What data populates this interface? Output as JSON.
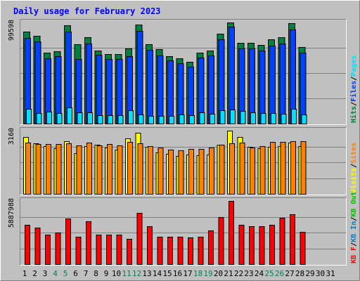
{
  "chart_data": {
    "type": "bar",
    "title": "Daily usage for February 2023",
    "colors": {
      "background": "#c0c0c0",
      "border_dark": "#808080",
      "border_light": "#ffffff",
      "title": "#0000ff",
      "hits": "#008040",
      "files": "#0040ff",
      "pages": "#00e0ff",
      "visits": "#ffff00",
      "sites": "#ff8000",
      "kb_in": "#0080c0",
      "kb_out": "#00c000",
      "kbf": "#ff0000",
      "weekend_label": "#00805c",
      "normal_label": "#000000"
    },
    "days": [
      "1",
      "2",
      "3",
      "4",
      "5",
      "6",
      "7",
      "8",
      "9",
      "10",
      "11",
      "12",
      "13",
      "14",
      "15",
      "16",
      "17",
      "18",
      "19",
      "20",
      "21",
      "22",
      "23",
      "24",
      "25",
      "26",
      "27",
      "28",
      "29",
      "30",
      "31"
    ],
    "weekend_days": [
      4,
      5,
      11,
      12,
      18,
      19,
      25,
      26
    ],
    "panels": [
      {
        "max_label": "99598",
        "ymax": 99598,
        "legend": [
          {
            "text": "Hits",
            "color": "#008040"
          },
          {
            "text": "/",
            "color": "#000000"
          },
          {
            "text": "Files",
            "color": "#0040ff"
          },
          {
            "text": "/",
            "color": "#000000"
          },
          {
            "text": "Pages",
            "color": "#00e0ff"
          }
        ],
        "series": [
          {
            "name": "Hits",
            "color": "#008040",
            "values": [
              90380,
              86630,
              69660,
              71550,
              96720,
              78420,
              84790,
              72190,
              68290,
              68790,
              73930,
              97640,
              77940,
              73110,
              66640,
              64600,
              61030,
              69690,
              71630,
              88730,
              99380,
              79700,
              79350,
              77620,
              82960,
              84980,
              98690,
              75250
            ]
          },
          {
            "name": "Files",
            "color": "#0040ff",
            "values": [
              84130,
              81130,
              64580,
              66440,
              90620,
              63840,
              79120,
              67530,
              63530,
              63650,
              66100,
              91640,
              72920,
              67420,
              61940,
              59220,
              56340,
              64760,
              67060,
              83050,
              95210,
              73930,
              74210,
              71940,
              76610,
              78690,
              92850,
              69730
            ]
          },
          {
            "name": "Pages",
            "color": "#00e0ff",
            "values": [
              14430,
              10690,
              11550,
              10570,
              15830,
              10870,
              10950,
              8510,
              7980,
              8540,
              12930,
              8980,
              7810,
              7400,
              7540,
              9060,
              8060,
              11000,
              9460,
              13240,
              13830,
              12650,
              11180,
              10400,
              10380,
              9880,
              14430,
              8820
            ]
          }
        ]
      },
      {
        "max_label": "3160",
        "ymax": 3160,
        "legend": [
          {
            "text": "Visits",
            "color": "#ffff00"
          },
          {
            "text": "/",
            "color": "#000000"
          },
          {
            "text": "Sites",
            "color": "#ff8000"
          }
        ],
        "series": [
          {
            "name": "Visits",
            "color": "#ffff00",
            "values": [
              2830,
              2540,
              2380,
              2290,
              2650,
              2050,
              2390,
              2460,
              2300,
              2220,
              2760,
              3050,
              2360,
              2080,
              2010,
              1890,
              1960,
              1940,
              1960,
              2460,
              3160,
              2840,
              2360,
              2280,
              2340,
              2380,
              2560,
              2370
            ]
          },
          {
            "name": "Sites",
            "color": "#ff8000",
            "values": [
              2580,
              2480,
              2490,
              2500,
              2540,
              2410,
              2550,
              2410,
              2480,
              2440,
              2600,
              2520,
              2400,
              2330,
              2200,
              2190,
              2250,
              2250,
              2310,
              2470,
              2530,
              2550,
              2330,
              2370,
              2610,
              2600,
              2620,
              2630
            ]
          }
        ]
      },
      {
        "max_label": "5887988",
        "ymax": 5887988,
        "legend": [
          {
            "text": "KB F",
            "color": "#ff0000"
          },
          {
            "text": "/",
            "color": "#000000"
          },
          {
            "text": "KB In",
            "color": "#0080c0"
          },
          {
            "text": "/",
            "color": "#000000"
          },
          {
            "text": "KB Out",
            "color": "#00c000"
          }
        ],
        "series": [
          {
            "name": "KB F",
            "color": "#ff0000",
            "values": [
              3650000,
              3380000,
              2770000,
              2950000,
              4220000,
              2560000,
              4000000,
              2750000,
              2730000,
              2770000,
              2350000,
              4750000,
              3540000,
              2580000,
              2540000,
              2520000,
              2460000,
              2520000,
              3110000,
              4370000,
              5880000,
              3670000,
              3540000,
              3530000,
              3690000,
              4300000,
              4630000,
              2990000
            ]
          }
        ]
      }
    ]
  }
}
